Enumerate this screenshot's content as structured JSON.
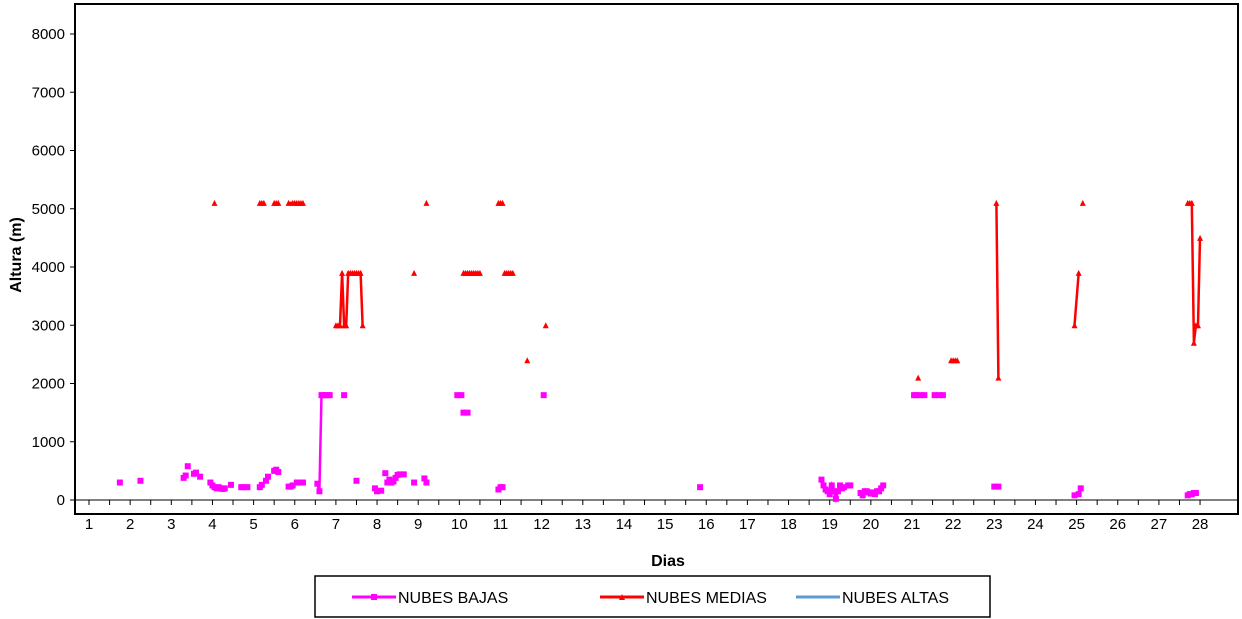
{
  "chart_data": {
    "type": "line",
    "title": "",
    "xlabel": "Dias",
    "ylabel": "Altura (m)",
    "xlim": [
      1,
      28.3
    ],
    "ylim": [
      0,
      8000
    ],
    "yticks": [
      0,
      1000,
      2000,
      3000,
      4000,
      5000,
      6000,
      7000,
      8000
    ],
    "xticks": [
      "1",
      "2",
      "3",
      "4",
      "5",
      "6",
      "7",
      "8",
      "9",
      "10",
      "11",
      "12",
      "13",
      "14",
      "15",
      "16",
      "17",
      "18",
      "19",
      "20",
      "21",
      "22",
      "23",
      "24",
      "25",
      "26",
      "27",
      "28"
    ],
    "grid": false,
    "legend_position": "bottom",
    "colors": {
      "NUBES BAJAS": "#ff00ff",
      "NUBES MEDIAS": "#ff0000",
      "NUBES ALTAS": "#5b9bd5"
    },
    "series": [
      {
        "name": "NUBES BAJAS",
        "segments": [
          [
            [
              1.75,
              300
            ]
          ],
          [
            [
              2.25,
              330
            ]
          ],
          [
            [
              3.3,
              380
            ],
            [
              3.35,
              420
            ]
          ],
          [
            [
              3.4,
              580
            ]
          ],
          [
            [
              3.55,
              450
            ],
            [
              3.6,
              470
            ]
          ],
          [
            [
              3.7,
              400
            ]
          ],
          [
            [
              3.95,
              300
            ],
            [
              4.0,
              250
            ],
            [
              4.05,
              220
            ],
            [
              4.1,
              200
            ],
            [
              4.15,
              220
            ],
            [
              4.2,
              200
            ],
            [
              4.25,
              190
            ],
            [
              4.3,
              200
            ]
          ],
          [
            [
              4.45,
              260
            ]
          ],
          [
            [
              4.7,
              220
            ],
            [
              4.75,
              220
            ],
            [
              4.85,
              220
            ]
          ],
          [
            [
              5.15,
              220
            ],
            [
              5.2,
              260
            ],
            [
              5.3,
              330
            ],
            [
              5.35,
              400
            ]
          ],
          [
            [
              5.5,
              500
            ],
            [
              5.55,
              520
            ],
            [
              5.6,
              480
            ]
          ],
          [
            [
              5.85,
              230
            ],
            [
              5.9,
              230
            ],
            [
              5.95,
              250
            ]
          ],
          [
            [
              6.05,
              300
            ],
            [
              6.1,
              300
            ],
            [
              6.2,
              300
            ]
          ],
          [
            [
              6.55,
              280
            ],
            [
              6.6,
              150
            ],
            [
              6.65,
              1800
            ],
            [
              6.7,
              1800
            ],
            [
              6.75,
              1800
            ],
            [
              6.8,
              1800
            ],
            [
              6.85,
              1800
            ]
          ],
          [
            [
              7.2,
              1800
            ]
          ],
          [
            [
              7.5,
              330
            ]
          ],
          [
            [
              7.95,
              200
            ],
            [
              8.0,
              150
            ],
            [
              8.1,
              160
            ]
          ],
          [
            [
              8.2,
              460
            ]
          ],
          [
            [
              8.25,
              300
            ],
            [
              8.3,
              350
            ],
            [
              8.35,
              300
            ],
            [
              8.4,
              320
            ],
            [
              8.45,
              380
            ]
          ],
          [
            [
              8.5,
              430
            ],
            [
              8.55,
              440
            ],
            [
              8.65,
              440
            ]
          ],
          [
            [
              8.9,
              300
            ]
          ],
          [
            [
              9.15,
              370
            ],
            [
              9.2,
              300
            ]
          ],
          [
            [
              9.95,
              1800
            ],
            [
              10.05,
              1800
            ]
          ],
          [
            [
              10.1,
              1500
            ],
            [
              10.2,
              1500
            ]
          ],
          [
            [
              10.95,
              180
            ],
            [
              11.0,
              220
            ],
            [
              11.05,
              220
            ]
          ],
          [
            [
              12.05,
              1800
            ]
          ],
          [
            [
              15.85,
              220
            ]
          ],
          [
            [
              18.8,
              350
            ],
            [
              18.85,
              250
            ],
            [
              18.9,
              180
            ],
            [
              18.95,
              150
            ],
            [
              19.0,
              100
            ],
            [
              19.05,
              250
            ],
            [
              19.1,
              150
            ],
            [
              19.15,
              20
            ],
            [
              19.2,
              150
            ],
            [
              19.25,
              250
            ],
            [
              19.3,
              200
            ],
            [
              19.35,
              220
            ],
            [
              19.45,
              250
            ],
            [
              19.5,
              250
            ]
          ],
          [
            [
              19.75,
              120
            ],
            [
              19.8,
              80
            ],
            [
              19.85,
              150
            ],
            [
              19.9,
              150
            ],
            [
              19.95,
              130
            ],
            [
              20.0,
              110
            ],
            [
              20.05,
              130
            ],
            [
              20.1,
              100
            ],
            [
              20.15,
              150
            ],
            [
              20.2,
              150
            ],
            [
              20.25,
              200
            ],
            [
              20.3,
              250
            ]
          ],
          [
            [
              21.05,
              1800
            ],
            [
              21.1,
              1800
            ],
            [
              21.2,
              1800
            ],
            [
              21.3,
              1800
            ]
          ],
          [
            [
              21.55,
              1800
            ],
            [
              21.65,
              1800
            ],
            [
              21.75,
              1800
            ]
          ],
          [
            [
              23.0,
              230
            ],
            [
              23.1,
              230
            ]
          ],
          [
            [
              24.95,
              80
            ],
            [
              25.05,
              100
            ],
            [
              25.1,
              200
            ]
          ],
          [
            [
              27.7,
              80
            ],
            [
              27.75,
              100
            ],
            [
              27.8,
              100
            ],
            [
              27.85,
              120
            ],
            [
              27.9,
              120
            ]
          ]
        ]
      },
      {
        "name": "NUBES MEDIAS",
        "segments": [
          [
            [
              4.05,
              5100
            ]
          ],
          [
            [
              5.15,
              5100
            ],
            [
              5.2,
              5100
            ],
            [
              5.25,
              5100
            ]
          ],
          [
            [
              5.5,
              5100
            ],
            [
              5.55,
              5100
            ],
            [
              5.6,
              5100
            ]
          ],
          [
            [
              5.85,
              5100
            ],
            [
              5.95,
              5100
            ],
            [
              6.0,
              5100
            ],
            [
              6.05,
              5100
            ],
            [
              6.1,
              5100
            ],
            [
              6.15,
              5100
            ],
            [
              6.2,
              5100
            ]
          ],
          [
            [
              7.0,
              3000
            ],
            [
              7.05,
              3000
            ],
            [
              7.1,
              3000
            ],
            [
              7.15,
              3900
            ],
            [
              7.2,
              3000
            ],
            [
              7.25,
              3000
            ],
            [
              7.3,
              3900
            ],
            [
              7.35,
              3900
            ],
            [
              7.4,
              3900
            ],
            [
              7.45,
              3900
            ],
            [
              7.5,
              3900
            ],
            [
              7.55,
              3900
            ],
            [
              7.6,
              3900
            ],
            [
              7.65,
              3000
            ]
          ],
          [
            [
              8.9,
              3900
            ]
          ],
          [
            [
              9.2,
              5100
            ]
          ],
          [
            [
              10.1,
              3900
            ],
            [
              10.15,
              3900
            ],
            [
              10.2,
              3900
            ],
            [
              10.25,
              3900
            ],
            [
              10.3,
              3900
            ],
            [
              10.35,
              3900
            ],
            [
              10.4,
              3900
            ],
            [
              10.45,
              3900
            ],
            [
              10.5,
              3900
            ]
          ],
          [
            [
              10.95,
              5100
            ],
            [
              11.0,
              5100
            ],
            [
              11.05,
              5100
            ]
          ],
          [
            [
              11.1,
              3900
            ],
            [
              11.15,
              3900
            ],
            [
              11.2,
              3900
            ],
            [
              11.25,
              3900
            ],
            [
              11.3,
              3900
            ]
          ],
          [
            [
              11.65,
              2400
            ]
          ],
          [
            [
              12.1,
              3000
            ]
          ],
          [
            [
              21.15,
              2100
            ]
          ],
          [
            [
              21.95,
              2400
            ],
            [
              22.0,
              2400
            ],
            [
              22.05,
              2400
            ],
            [
              22.1,
              2400
            ]
          ],
          [
            [
              23.05,
              5100
            ],
            [
              23.1,
              2100
            ]
          ],
          [
            [
              24.95,
              3000
            ],
            [
              25.05,
              3900
            ]
          ],
          [
            [
              25.15,
              5100
            ]
          ],
          [
            [
              27.7,
              5100
            ],
            [
              27.75,
              5100
            ],
            [
              27.8,
              5100
            ],
            [
              27.85,
              2700
            ],
            [
              27.9,
              3000
            ],
            [
              27.95,
              3000
            ],
            [
              28.0,
              4500
            ]
          ]
        ]
      },
      {
        "name": "NUBES ALTAS",
        "segments": []
      }
    ]
  }
}
